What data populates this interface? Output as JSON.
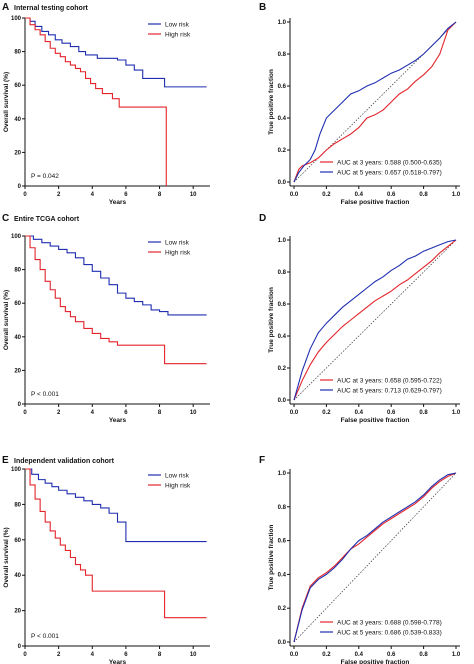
{
  "colors": {
    "low_risk": "#1f2fb0",
    "high_risk": "#e3242b",
    "axis": "#111111",
    "diagonal": "#333333"
  },
  "chart_data": [
    {
      "panel": "A",
      "type": "line",
      "title": "Internal testing cohort",
      "xlabel": "Years",
      "ylabel": "Overall survival (%)",
      "xlim": [
        0,
        11
      ],
      "ylim": [
        0,
        100
      ],
      "xticks": [
        0,
        2,
        4,
        6,
        8,
        10
      ],
      "yticks": [
        0,
        20,
        40,
        60,
        80,
        100
      ],
      "legend": "top-right",
      "annotation": "P = 0.042",
      "series": [
        {
          "name": "Low risk",
          "color": "#1f2fb0",
          "step": true,
          "x": [
            0,
            0.3,
            0.6,
            1.0,
            1.4,
            1.8,
            2.2,
            2.7,
            3.2,
            3.6,
            4.3,
            5.5,
            6.0,
            6.5,
            7.0,
            8.3,
            10.8
          ],
          "y": [
            100,
            98,
            95,
            92,
            90,
            87,
            85,
            83,
            80,
            78,
            76,
            75,
            72,
            69,
            64,
            59,
            59
          ]
        },
        {
          "name": "High risk",
          "color": "#e3242b",
          "step": true,
          "x": [
            0,
            0.3,
            0.6,
            0.9,
            1.2,
            1.5,
            1.8,
            2.1,
            2.4,
            2.7,
            3.0,
            3.3,
            3.6,
            3.9,
            4.2,
            4.6,
            5.2,
            5.6,
            6.5,
            8.3,
            8.4
          ],
          "y": [
            100,
            96,
            93,
            90,
            86,
            82,
            79,
            77,
            74,
            72,
            70,
            68,
            64,
            61,
            58,
            55,
            52,
            47,
            47,
            47,
            0
          ]
        }
      ]
    },
    {
      "panel": "B",
      "type": "line",
      "xlabel": "False positive fraction",
      "ylabel": "True positive fraction",
      "xlim": [
        0,
        1
      ],
      "ylim": [
        0,
        1
      ],
      "xticks": [
        0.0,
        0.2,
        0.4,
        0.6,
        0.8,
        1.0
      ],
      "yticks": [
        0.0,
        0.2,
        0.4,
        0.6,
        0.8,
        1.0
      ],
      "legend": "bottom-right",
      "series": [
        {
          "name": "AUC at 3 years: 0.588 (0.500-0.635)",
          "color": "#e3242b",
          "x": [
            0,
            0.03,
            0.05,
            0.1,
            0.15,
            0.2,
            0.25,
            0.3,
            0.35,
            0.4,
            0.45,
            0.5,
            0.55,
            0.6,
            0.65,
            0.7,
            0.75,
            0.8,
            0.85,
            0.9,
            0.95,
            1.0
          ],
          "y": [
            0,
            0.08,
            0.1,
            0.12,
            0.15,
            0.2,
            0.24,
            0.27,
            0.3,
            0.34,
            0.4,
            0.42,
            0.45,
            0.5,
            0.55,
            0.58,
            0.63,
            0.67,
            0.72,
            0.8,
            0.95,
            1.0
          ]
        },
        {
          "name": "AUC at 5 years: 0.657 (0.518-0.797)",
          "color": "#1f2fb0",
          "x": [
            0,
            0.03,
            0.06,
            0.1,
            0.13,
            0.16,
            0.2,
            0.25,
            0.3,
            0.35,
            0.4,
            0.45,
            0.5,
            0.55,
            0.6,
            0.65,
            0.7,
            0.75,
            0.8,
            0.85,
            0.9,
            0.95,
            1.0
          ],
          "y": [
            0,
            0.06,
            0.1,
            0.14,
            0.2,
            0.3,
            0.4,
            0.45,
            0.5,
            0.55,
            0.57,
            0.6,
            0.62,
            0.65,
            0.68,
            0.7,
            0.73,
            0.76,
            0.8,
            0.85,
            0.9,
            0.96,
            1.0
          ]
        }
      ]
    },
    {
      "panel": "C",
      "type": "line",
      "title": "Entire TCGA cohort",
      "xlabel": "Years",
      "ylabel": "Overall survival (%)",
      "xlim": [
        0,
        11
      ],
      "ylim": [
        0,
        100
      ],
      "xticks": [
        0,
        2,
        4,
        6,
        8,
        10
      ],
      "yticks": [
        0,
        20,
        40,
        60,
        80,
        100
      ],
      "legend": "top-right",
      "annotation": "P < 0.001",
      "series": [
        {
          "name": "Low risk",
          "color": "#1f2fb0",
          "step": true,
          "x": [
            0,
            0.5,
            1.0,
            1.5,
            2.0,
            2.5,
            3.0,
            3.5,
            4.0,
            4.5,
            5.0,
            5.5,
            6.0,
            6.5,
            7.0,
            7.5,
            8.0,
            8.5,
            10.8
          ],
          "y": [
            100,
            98,
            96,
            94,
            92,
            90,
            87,
            83,
            79,
            75,
            71,
            66,
            63,
            61,
            59,
            56,
            55,
            53,
            53
          ]
        },
        {
          "name": "High risk",
          "color": "#e3242b",
          "step": true,
          "x": [
            0,
            0.3,
            0.6,
            0.9,
            1.2,
            1.5,
            1.8,
            2.1,
            2.4,
            2.7,
            3.0,
            3.5,
            4.0,
            4.5,
            5.0,
            5.5,
            6.5,
            8.3,
            10.8
          ],
          "y": [
            100,
            93,
            86,
            80,
            73,
            68,
            63,
            58,
            55,
            52,
            49,
            45,
            42,
            39,
            37,
            35,
            35,
            24,
            24
          ]
        }
      ]
    },
    {
      "panel": "D",
      "type": "line",
      "xlabel": "False positive fraction",
      "ylabel": "True positive fraction",
      "xlim": [
        0,
        1
      ],
      "ylim": [
        0,
        1
      ],
      "xticks": [
        0.0,
        0.2,
        0.4,
        0.6,
        0.8,
        1.0
      ],
      "yticks": [
        0.0,
        0.2,
        0.4,
        0.6,
        0.8,
        1.0
      ],
      "legend": "bottom-right",
      "series": [
        {
          "name": "AUC at 3 years: 0.658 (0.595-0.722)",
          "color": "#e3242b",
          "x": [
            0,
            0.05,
            0.1,
            0.15,
            0.2,
            0.25,
            0.3,
            0.35,
            0.4,
            0.45,
            0.5,
            0.55,
            0.6,
            0.65,
            0.7,
            0.75,
            0.8,
            0.85,
            0.9,
            0.95,
            1.0
          ],
          "y": [
            0,
            0.12,
            0.22,
            0.3,
            0.36,
            0.41,
            0.46,
            0.5,
            0.54,
            0.58,
            0.62,
            0.65,
            0.68,
            0.72,
            0.75,
            0.79,
            0.83,
            0.87,
            0.92,
            0.96,
            1.0
          ]
        },
        {
          "name": "AUC at 5 years: 0.713 (0.629-0.797)",
          "color": "#1f2fb0",
          "x": [
            0,
            0.05,
            0.1,
            0.15,
            0.2,
            0.25,
            0.3,
            0.35,
            0.4,
            0.45,
            0.5,
            0.55,
            0.6,
            0.65,
            0.7,
            0.75,
            0.8,
            0.85,
            0.9,
            0.95,
            1.0
          ],
          "y": [
            0,
            0.18,
            0.32,
            0.42,
            0.48,
            0.53,
            0.58,
            0.62,
            0.66,
            0.7,
            0.74,
            0.77,
            0.81,
            0.84,
            0.88,
            0.9,
            0.93,
            0.95,
            0.97,
            0.99,
            1.0
          ]
        }
      ]
    },
    {
      "panel": "E",
      "type": "line",
      "title": "Independent validation cohort",
      "xlabel": "Years",
      "ylabel": "Overall survival (%)",
      "xlim": [
        0,
        11
      ],
      "ylim": [
        0,
        100
      ],
      "xticks": [
        0,
        2,
        4,
        6,
        8,
        10
      ],
      "yticks": [
        0,
        20,
        40,
        60,
        80,
        100
      ],
      "legend": "top-right",
      "annotation": "P < 0.001",
      "series": [
        {
          "name": "Low risk",
          "color": "#1f2fb0",
          "step": true,
          "x": [
            0,
            0.4,
            0.8,
            1.2,
            1.6,
            2.0,
            2.5,
            3.0,
            3.5,
            4.0,
            4.5,
            5.0,
            5.5,
            6.0,
            7.0,
            8.5,
            10.8
          ],
          "y": [
            100,
            97,
            94,
            92,
            90,
            88,
            86,
            84,
            82,
            80,
            78,
            75,
            70,
            59,
            59,
            59,
            59
          ]
        },
        {
          "name": "High risk",
          "color": "#e3242b",
          "step": true,
          "x": [
            0,
            0.3,
            0.6,
            0.9,
            1.2,
            1.5,
            1.8,
            2.1,
            2.4,
            2.7,
            3.0,
            3.3,
            3.6,
            4.0,
            5.0,
            8.3,
            10.8
          ],
          "y": [
            100,
            91,
            83,
            76,
            70,
            65,
            61,
            57,
            54,
            50,
            46,
            43,
            40,
            31,
            31,
            16,
            16
          ]
        }
      ]
    },
    {
      "panel": "F",
      "type": "line",
      "xlabel": "False positive fraction",
      "ylabel": "True positive fraction",
      "xlim": [
        0,
        1
      ],
      "ylim": [
        0,
        1
      ],
      "xticks": [
        0.0,
        0.2,
        0.4,
        0.6,
        0.8,
        1.0
      ],
      "yticks": [
        0.0,
        0.2,
        0.4,
        0.6,
        0.8,
        1.0
      ],
      "legend": "bottom-right",
      "series": [
        {
          "name": "AUC at 3 years: 0.688 (0.598-0.778)",
          "color": "#e3242b",
          "x": [
            0,
            0.05,
            0.1,
            0.15,
            0.2,
            0.25,
            0.3,
            0.35,
            0.4,
            0.45,
            0.5,
            0.55,
            0.6,
            0.65,
            0.7,
            0.75,
            0.8,
            0.85,
            0.9,
            0.95,
            1.0
          ],
          "y": [
            0,
            0.2,
            0.33,
            0.38,
            0.41,
            0.45,
            0.5,
            0.55,
            0.58,
            0.62,
            0.66,
            0.7,
            0.73,
            0.76,
            0.79,
            0.82,
            0.86,
            0.91,
            0.95,
            0.98,
            1.0
          ]
        },
        {
          "name": "AUC at 5 years: 0.686 (0.539-0.833)",
          "color": "#1f2fb0",
          "x": [
            0,
            0.05,
            0.1,
            0.15,
            0.2,
            0.25,
            0.3,
            0.35,
            0.4,
            0.45,
            0.5,
            0.55,
            0.6,
            0.65,
            0.7,
            0.75,
            0.8,
            0.85,
            0.9,
            0.95,
            1.0
          ],
          "y": [
            0,
            0.19,
            0.32,
            0.37,
            0.4,
            0.44,
            0.49,
            0.55,
            0.6,
            0.63,
            0.67,
            0.71,
            0.74,
            0.77,
            0.8,
            0.83,
            0.87,
            0.92,
            0.96,
            0.99,
            1.0
          ]
        }
      ]
    }
  ]
}
